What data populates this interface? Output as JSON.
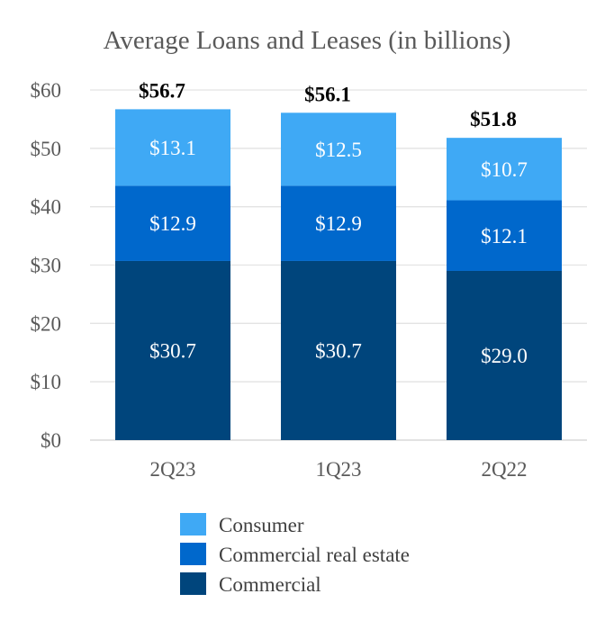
{
  "chart_data": {
    "type": "bar",
    "stacked": true,
    "title": "Average Loans and Leases (in billions)",
    "categories": [
      "2Q23",
      "1Q23",
      "2Q22"
    ],
    "series": [
      {
        "name": "Commercial",
        "values": [
          30.7,
          30.7,
          29.0
        ],
        "labels": [
          "$30.7",
          "$30.7",
          "$29.0"
        ],
        "color": "#00457c"
      },
      {
        "name": "Commercial real estate",
        "values": [
          12.9,
          12.9,
          12.1
        ],
        "labels": [
          "$12.9",
          "$12.9",
          "$12.1"
        ],
        "color": "#0068cc"
      },
      {
        "name": "Consumer",
        "values": [
          13.1,
          12.5,
          10.7
        ],
        "labels": [
          "$13.1",
          "$12.5",
          "$10.7"
        ],
        "color": "#3fa9f5"
      }
    ],
    "totals": [
      56.7,
      56.1,
      51.8
    ],
    "total_labels": [
      "$56.7",
      "$56.1",
      "$51.8"
    ],
    "ylim": [
      0,
      60
    ],
    "y_ticks": [
      0,
      10,
      20,
      30,
      40,
      50,
      60
    ],
    "y_tick_labels": [
      "$0",
      "$10",
      "$20",
      "$30",
      "$40",
      "$50",
      "$60"
    ],
    "grid": true,
    "legend": {
      "placement": "bottom",
      "order": [
        "Consumer",
        "Commercial real estate",
        "Commercial"
      ]
    }
  }
}
